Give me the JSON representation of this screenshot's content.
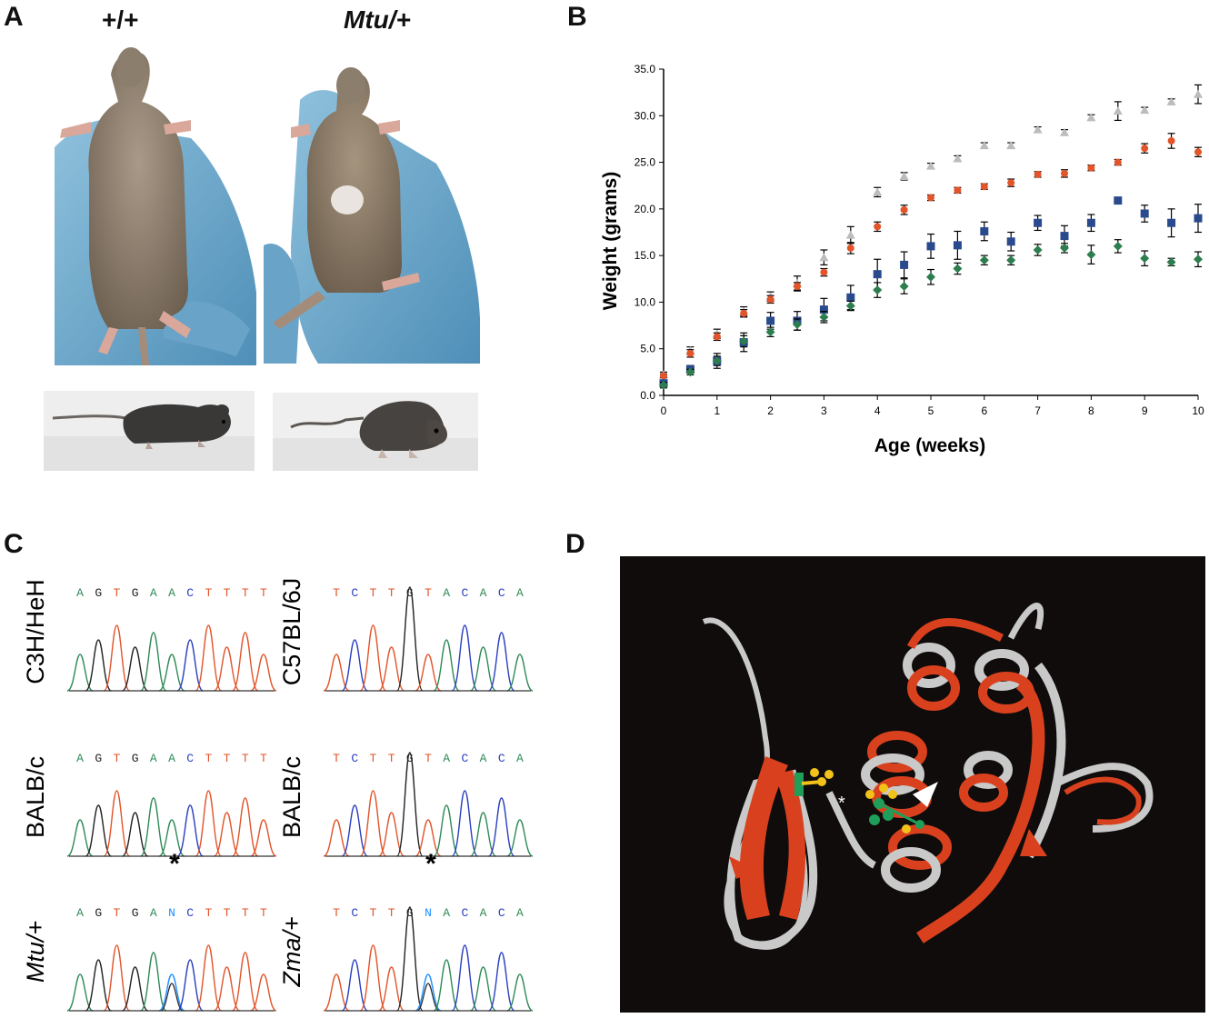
{
  "panel_letters": {
    "a": "A",
    "b": "B",
    "c": "C",
    "d": "D"
  },
  "panel_a": {
    "wt_label": "+/+",
    "mut_label": "Mtu/+"
  },
  "chart_data": {
    "type": "scatter",
    "title": "",
    "xlabel": "Age (weeks)",
    "ylabel": "Weight (grams)",
    "xlim": [
      0,
      10
    ],
    "ylim": [
      0,
      35
    ],
    "x_ticks": [
      "0",
      "1",
      "2",
      "3",
      "4",
      "5",
      "6",
      "7",
      "8",
      "9",
      "10"
    ],
    "y_ticks": [
      "0.0",
      "5.0",
      "10.0",
      "15.0",
      "20.0",
      "25.0",
      "30.0",
      "35.0"
    ],
    "grid": false,
    "x": [
      0,
      0.5,
      1,
      1.5,
      2,
      2.5,
      3,
      3.5,
      4,
      4.5,
      5,
      5.5,
      6,
      6.5,
      7,
      7.5,
      8,
      8.5,
      9,
      9.5,
      10
    ],
    "series": [
      {
        "color": "#bcbcbc",
        "marker": "triangle",
        "values": [
          2.2,
          4.8,
          6.6,
          9.0,
          10.6,
          12.0,
          14.8,
          17.2,
          21.8,
          23.5,
          24.6,
          25.4,
          26.8,
          26.8,
          28.5,
          28.2,
          29.8,
          30.5,
          30.6,
          31.5,
          32.3
        ],
        "errors": [
          0.3,
          0.4,
          0.5,
          0.5,
          0.5,
          0.8,
          0.8,
          0.9,
          0.5,
          0.4,
          0.3,
          0.3,
          0.3,
          0.3,
          0.3,
          0.3,
          0.3,
          1.0,
          0.3,
          0.3,
          1.0
        ]
      },
      {
        "color": "#e2542a",
        "marker": "circle",
        "values": [
          2.1,
          4.5,
          6.3,
          8.8,
          10.3,
          11.7,
          13.2,
          15.8,
          18.1,
          19.9,
          21.2,
          22.0,
          22.4,
          22.8,
          23.7,
          23.8,
          24.4,
          25.0,
          26.5,
          27.3,
          26.1
        ],
        "errors": [
          0.2,
          0.4,
          0.4,
          0.4,
          0.4,
          0.4,
          0.4,
          0.6,
          0.5,
          0.5,
          0.3,
          0.3,
          0.3,
          0.4,
          0.3,
          0.4,
          0.3,
          0.3,
          0.5,
          0.8,
          0.5
        ]
      },
      {
        "color": "#2a4a8e",
        "marker": "square",
        "values": [
          1.3,
          2.8,
          3.7,
          5.7,
          8.0,
          8.0,
          9.2,
          10.5,
          13.0,
          14.0,
          16.0,
          16.1,
          17.6,
          16.5,
          18.5,
          17.1,
          18.5,
          20.9,
          19.5,
          18.5,
          19.0
        ],
        "errors": [
          0.3,
          0.4,
          0.8,
          1.0,
          0.9,
          1.0,
          1.2,
          1.3,
          1.6,
          1.4,
          1.3,
          1.5,
          1.0,
          1.0,
          0.8,
          1.1,
          0.9,
          0.0,
          0.9,
          1.5,
          1.5
        ]
      },
      {
        "color": "#2e7d4f",
        "marker": "diamond",
        "values": [
          1.1,
          2.5,
          3.7,
          5.8,
          6.8,
          7.6,
          8.4,
          9.6,
          11.3,
          11.7,
          12.7,
          13.6,
          14.5,
          14.5,
          15.6,
          15.8,
          15.1,
          16.0,
          14.7,
          14.3,
          14.6
        ],
        "errors": [
          0.3,
          0.3,
          0.5,
          0.6,
          0.5,
          0.6,
          0.6,
          0.5,
          0.8,
          0.8,
          0.8,
          0.6,
          0.5,
          0.5,
          0.6,
          0.5,
          1.0,
          0.7,
          0.8,
          0.4,
          0.8
        ]
      }
    ]
  },
  "panel_c": {
    "traces": [
      {
        "label": "C3H/HeH",
        "bases": [
          "A",
          "G",
          "T",
          "G",
          "A",
          "A",
          "C",
          "T",
          "T",
          "T",
          "T"
        ],
        "star": ""
      },
      {
        "label": "C57BL/6J",
        "bases": [
          "T",
          "C",
          "T",
          "T",
          "G",
          "T",
          "A",
          "C",
          "A",
          "C",
          "A"
        ],
        "star": ""
      },
      {
        "label": "BALB/c",
        "bases": [
          "A",
          "G",
          "T",
          "G",
          "A",
          "A",
          "C",
          "T",
          "T",
          "T",
          "T"
        ],
        "star": ""
      },
      {
        "label": "BALB/c",
        "bases": [
          "T",
          "C",
          "T",
          "T",
          "G",
          "T",
          "A",
          "C",
          "A",
          "C",
          "A"
        ],
        "star": ""
      },
      {
        "label": "Mtu/+",
        "bases": [
          "A",
          "G",
          "T",
          "G",
          "A",
          "N",
          "C",
          "T",
          "T",
          "T",
          "T"
        ],
        "star": "*"
      },
      {
        "label": "Zma/+",
        "bases": [
          "T",
          "C",
          "T",
          "T",
          "G",
          "N",
          "A",
          "C",
          "A",
          "C",
          "A"
        ],
        "star": "*"
      }
    ],
    "base_colors": {
      "A": "#2e8b57",
      "G": "#222222",
      "T": "#e2542a",
      "C": "#2a3fbf",
      "N": "#1e90ff"
    }
  },
  "panel_d": {
    "asterisk": "*",
    "background": "#0f0c0b",
    "ribbon_colors": [
      "#d9411e",
      "#c9c9c9"
    ],
    "ligand_colors": [
      "#f2c21b",
      "#1f9e5a"
    ]
  }
}
